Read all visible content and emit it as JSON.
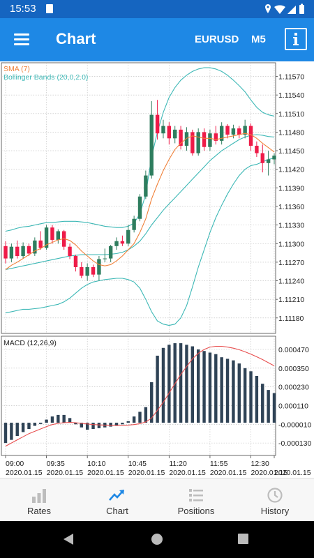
{
  "status_bar": {
    "time": "15:53"
  },
  "app_bar": {
    "title": "Chart",
    "symbol": "EURUSD",
    "timeframe": "M5",
    "menu_icon": "hamburger-menu-icon",
    "info_icon": "info-icon"
  },
  "indicators": {
    "sma_label": "SMA (7)",
    "bb_label": "Bollinger Bands (20,0,2.0)",
    "macd_label": "MACD (12,26,9)"
  },
  "colors": {
    "bull": "#2e7d5e",
    "bear": "#ee1b48",
    "sma": "#f0813a",
    "bb": "#3db8b6",
    "macd_bar": "#2f4356",
    "macd_signal": "#e84e4e",
    "accent": "#1e88e5"
  },
  "bottom_nav": [
    {
      "label": "Rates",
      "icon": "bar-chart-icon",
      "active": false
    },
    {
      "label": "Chart",
      "icon": "trend-line-icon",
      "active": true
    },
    {
      "label": "Positions",
      "icon": "list-icon",
      "active": false
    },
    {
      "label": "History",
      "icon": "clock-icon",
      "active": false
    }
  ],
  "chart_data": [
    {
      "type": "candlestick",
      "price_ticks": [
        "1.11570",
        "1.11540",
        "1.11510",
        "1.11480",
        "1.11450",
        "1.11420",
        "1.11390",
        "1.11360",
        "1.11330",
        "1.11300",
        "1.11270",
        "1.11240",
        "1.11210",
        "1.11180"
      ],
      "price_ylim": [
        1.11155,
        1.11592
      ],
      "time_ticks": [
        {
          "time": "09:00",
          "date": "2020.01.15",
          "bar": 0
        },
        {
          "time": "09:35",
          "date": "2020.01.15",
          "bar": 7
        },
        {
          "time": "10:10",
          "date": "2020.01.15",
          "bar": 14
        },
        {
          "time": "10:45",
          "date": "2020.01.15",
          "bar": 21
        },
        {
          "time": "11:20",
          "date": "2020.01.15",
          "bar": 28
        },
        {
          "time": "11:55",
          "date": "2020.01.15",
          "bar": 35
        },
        {
          "time": "12:30",
          "date": "2020.01.15",
          "bar": 42
        },
        {
          "time": "",
          "date": "2020.01.15",
          "bar": 46
        }
      ],
      "candles": [
        {
          "o": 1.11296,
          "h": 1.11304,
          "l": 1.11268,
          "c": 1.11276
        },
        {
          "o": 1.11276,
          "h": 1.113,
          "l": 1.1127,
          "c": 1.11295
        },
        {
          "o": 1.11295,
          "h": 1.11305,
          "l": 1.11276,
          "c": 1.1128
        },
        {
          "o": 1.1128,
          "h": 1.11302,
          "l": 1.11276,
          "c": 1.11296
        },
        {
          "o": 1.11296,
          "h": 1.113,
          "l": 1.1128,
          "c": 1.11284
        },
        {
          "o": 1.11284,
          "h": 1.1131,
          "l": 1.1128,
          "c": 1.11305
        },
        {
          "o": 1.11305,
          "h": 1.1132,
          "l": 1.1129,
          "c": 1.11293
        },
        {
          "o": 1.11293,
          "h": 1.1133,
          "l": 1.1129,
          "c": 1.11326
        },
        {
          "o": 1.11326,
          "h": 1.1133,
          "l": 1.113,
          "c": 1.11306
        },
        {
          "o": 1.11306,
          "h": 1.11323,
          "l": 1.113,
          "c": 1.1132
        },
        {
          "o": 1.1132,
          "h": 1.11322,
          "l": 1.1129,
          "c": 1.11295
        },
        {
          "o": 1.11295,
          "h": 1.113,
          "l": 1.11275,
          "c": 1.1128
        },
        {
          "o": 1.1128,
          "h": 1.11282,
          "l": 1.11255,
          "c": 1.11262
        },
        {
          "o": 1.11262,
          "h": 1.1127,
          "l": 1.11244,
          "c": 1.11248
        },
        {
          "o": 1.11248,
          "h": 1.11268,
          "l": 1.1124,
          "c": 1.11262
        },
        {
          "o": 1.11262,
          "h": 1.11266,
          "l": 1.11246,
          "c": 1.1125
        },
        {
          "o": 1.1125,
          "h": 1.1128,
          "l": 1.1124,
          "c": 1.11275
        },
        {
          "o": 1.11275,
          "h": 1.11292,
          "l": 1.1127,
          "c": 1.11276
        },
        {
          "o": 1.11276,
          "h": 1.11298,
          "l": 1.1127,
          "c": 1.11296
        },
        {
          "o": 1.11296,
          "h": 1.1131,
          "l": 1.1129,
          "c": 1.11304
        },
        {
          "o": 1.11304,
          "h": 1.11313,
          "l": 1.11296,
          "c": 1.113
        },
        {
          "o": 1.113,
          "h": 1.1133,
          "l": 1.11296,
          "c": 1.11322
        },
        {
          "o": 1.11322,
          "h": 1.11345,
          "l": 1.11318,
          "c": 1.1134
        },
        {
          "o": 1.1134,
          "h": 1.1138,
          "l": 1.11336,
          "c": 1.11376
        },
        {
          "o": 1.11376,
          "h": 1.11418,
          "l": 1.11372,
          "c": 1.1141
        },
        {
          "o": 1.1141,
          "h": 1.1153,
          "l": 1.11405,
          "c": 1.11508
        },
        {
          "o": 1.11508,
          "h": 1.11532,
          "l": 1.11468,
          "c": 1.11478
        },
        {
          "o": 1.11478,
          "h": 1.115,
          "l": 1.1147,
          "c": 1.1149
        },
        {
          "o": 1.1149,
          "h": 1.11496,
          "l": 1.1146,
          "c": 1.1147
        },
        {
          "o": 1.1147,
          "h": 1.1149,
          "l": 1.11462,
          "c": 1.11484
        },
        {
          "o": 1.11484,
          "h": 1.1149,
          "l": 1.11452,
          "c": 1.11458
        },
        {
          "o": 1.11458,
          "h": 1.11488,
          "l": 1.1145,
          "c": 1.1148
        },
        {
          "o": 1.1148,
          "h": 1.11484,
          "l": 1.11442,
          "c": 1.11446
        },
        {
          "o": 1.11446,
          "h": 1.11486,
          "l": 1.11442,
          "c": 1.1148
        },
        {
          "o": 1.1148,
          "h": 1.11486,
          "l": 1.1145,
          "c": 1.11456
        },
        {
          "o": 1.11456,
          "h": 1.11484,
          "l": 1.1145,
          "c": 1.11478
        },
        {
          "o": 1.11478,
          "h": 1.1149,
          "l": 1.1146,
          "c": 1.11466
        },
        {
          "o": 1.11466,
          "h": 1.11496,
          "l": 1.1146,
          "c": 1.1149
        },
        {
          "o": 1.1149,
          "h": 1.11493,
          "l": 1.1147,
          "c": 1.11476
        },
        {
          "o": 1.11476,
          "h": 1.11492,
          "l": 1.1147,
          "c": 1.11486
        },
        {
          "o": 1.11486,
          "h": 1.1149,
          "l": 1.1147,
          "c": 1.11476
        },
        {
          "o": 1.11476,
          "h": 1.115,
          "l": 1.1147,
          "c": 1.1149
        },
        {
          "o": 1.1149,
          "h": 1.11494,
          "l": 1.1145,
          "c": 1.11458
        },
        {
          "o": 1.11458,
          "h": 1.11465,
          "l": 1.1144,
          "c": 1.11446
        },
        {
          "o": 1.11446,
          "h": 1.1146,
          "l": 1.11415,
          "c": 1.1143
        },
        {
          "o": 1.1143,
          "h": 1.1145,
          "l": 1.1141,
          "c": 1.11436
        },
        {
          "o": 1.11436,
          "h": 1.11446,
          "l": 1.11428,
          "c": 1.11442
        }
      ],
      "sma": [
        1.11258,
        1.11265,
        1.1127,
        1.11276,
        1.11282,
        1.11288,
        1.11292,
        1.11298,
        1.11302,
        1.11306,
        1.11308,
        1.11305,
        1.11298,
        1.11288,
        1.1128,
        1.11272,
        1.11266,
        1.11264,
        1.11266,
        1.11272,
        1.1128,
        1.1129,
        1.113,
        1.11318,
        1.1134,
        1.11372,
        1.11396,
        1.11418,
        1.11436,
        1.11452,
        1.11462,
        1.1147,
        1.11474,
        1.11472,
        1.1147,
        1.1147,
        1.11468,
        1.1147,
        1.11472,
        1.11474,
        1.11476,
        1.11478,
        1.11476,
        1.1147,
        1.11462,
        1.11455,
        1.11448
      ],
      "bb_upper": [
        1.1132,
        1.11322,
        1.11325,
        1.11327,
        1.11328,
        1.1133,
        1.11332,
        1.11334,
        1.11334,
        1.11335,
        1.11336,
        1.11336,
        1.11336,
        1.11335,
        1.11334,
        1.11332,
        1.1133,
        1.11328,
        1.11327,
        1.11326,
        1.11326,
        1.11328,
        1.11333,
        1.11348,
        1.1138,
        1.1144,
        1.1148,
        1.11512,
        1.11536,
        1.11552,
        1.11564,
        1.11572,
        1.11578,
        1.11582,
        1.11584,
        1.11584,
        1.11582,
        1.11578,
        1.11572,
        1.11564,
        1.11555,
        1.11545,
        1.11532,
        1.1152,
        1.11512,
        1.11508,
        1.11506
      ],
      "bb_mid": [
        1.11258,
        1.1126,
        1.11262,
        1.11264,
        1.11266,
        1.11268,
        1.1127,
        1.11272,
        1.11274,
        1.11276,
        1.11278,
        1.1128,
        1.11281,
        1.11282,
        1.11282,
        1.11282,
        1.11282,
        1.11282,
        1.11283,
        1.11284,
        1.11286,
        1.1129,
        1.11296,
        1.11304,
        1.11316,
        1.1133,
        1.11342,
        1.11354,
        1.11364,
        1.11374,
        1.11384,
        1.11394,
        1.11404,
        1.11414,
        1.11424,
        1.11434,
        1.11442,
        1.1145,
        1.11456,
        1.11462,
        1.11468,
        1.11472,
        1.11475,
        1.11476,
        1.11475,
        1.11473,
        1.11472
      ],
      "bb_lower": [
        1.11188,
        1.1119,
        1.11192,
        1.11194,
        1.11194,
        1.11195,
        1.11196,
        1.11198,
        1.112,
        1.11202,
        1.11206,
        1.11212,
        1.1122,
        1.11228,
        1.11234,
        1.11238,
        1.1124,
        1.11242,
        1.11243,
        1.11244,
        1.11244,
        1.11242,
        1.11238,
        1.11228,
        1.1121,
        1.1119,
        1.11175,
        1.1117,
        1.11168,
        1.1117,
        1.1118,
        1.112,
        1.1123,
        1.11262,
        1.1129,
        1.11318,
        1.11342,
        1.11362,
        1.1138,
        1.11396,
        1.1141,
        1.1142,
        1.11426,
        1.11428,
        1.11432,
        1.11436,
        1.11438
      ]
    },
    {
      "type": "bar",
      "title": "MACD (12,26,9)",
      "ticks": [
        "0.000470",
        "0.000350",
        "0.000230",
        "0.000110",
        "-0.000010",
        "-0.000130"
      ],
      "ylim": [
        -0.00021,
        0.000555
      ],
      "histogram": [
        -0.00013,
        -0.00011,
        -8.5e-05,
        -6e-05,
        -4e-05,
        -2e-05,
        -8e-06,
        2e-05,
        4e-05,
        5e-05,
        5e-05,
        3e-05,
        -1e-05,
        -3e-05,
        -4.5e-05,
        -4e-05,
        -3.5e-05,
        -3e-05,
        -2.5e-05,
        -2e-05,
        -1e-05,
        1e-05,
        4e-05,
        7e-05,
        0.0001,
        0.00026,
        0.00043,
        0.00048,
        0.0005,
        0.00051,
        0.00051,
        0.0005,
        0.00049,
        0.00047,
        0.00046,
        0.00045,
        0.00044,
        0.00042,
        0.00041,
        0.0004,
        0.00038,
        0.00035,
        0.00033,
        0.0003,
        0.00025,
        0.00021,
        0.00019
      ],
      "signal": [
        -0.00015,
        -0.00013,
        -0.00011,
        -9e-05,
        -7e-05,
        -5.5e-05,
        -4e-05,
        -2.5e-05,
        -1.2e-05,
        -4e-06,
        0.0,
        2e-06,
        0.0,
        -4e-06,
        -8e-06,
        -1.2e-05,
        -1.4e-05,
        -1.6e-05,
        -1.7e-05,
        -1.8e-05,
        -1.8e-05,
        -1.6e-05,
        -1.2e-05,
        -6e-06,
        5e-06,
        3e-05,
        8e-05,
        0.00013,
        0.00019,
        0.00025,
        0.00031,
        0.00036,
        0.00041,
        0.000445,
        0.00047,
        0.000485,
        0.00049,
        0.00049,
        0.000485,
        0.000478,
        0.000468,
        0.000455,
        0.00044,
        0.000423,
        0.000405,
        0.000385,
        0.000365
      ]
    }
  ]
}
